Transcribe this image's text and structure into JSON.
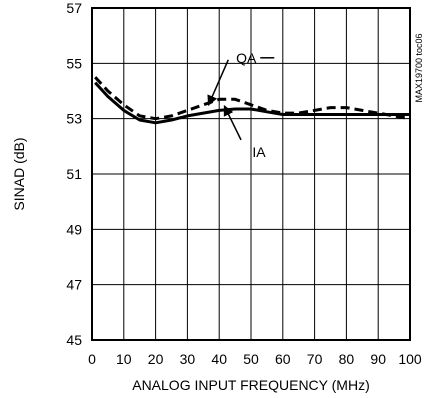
{
  "figure_id": "MAX19700 toc06",
  "chart_data": {
    "type": "line",
    "xlabel": "ANALOG INPUT FREQUENCY (MHz)",
    "ylabel": "SINAD (dB)",
    "xlim": [
      0,
      100
    ],
    "ylim": [
      45,
      57
    ],
    "xticks": [
      0,
      10,
      20,
      30,
      40,
      50,
      60,
      70,
      80,
      90,
      100
    ],
    "yticks": [
      45,
      47,
      49,
      51,
      53,
      55,
      57
    ],
    "grid": true,
    "series": [
      {
        "name": "QA",
        "style": "dashed",
        "x": [
          1,
          5,
          10,
          15,
          20,
          25,
          30,
          35,
          40,
          45,
          50,
          55,
          60,
          65,
          70,
          75,
          80,
          85,
          90,
          95,
          100
        ],
        "y": [
          54.5,
          54.0,
          53.5,
          53.1,
          53.0,
          53.1,
          53.3,
          53.5,
          53.7,
          53.7,
          53.5,
          53.3,
          53.2,
          53.2,
          53.3,
          53.4,
          53.4,
          53.3,
          53.2,
          53.1,
          53.0
        ]
      },
      {
        "name": "IA",
        "style": "solid",
        "x": [
          1,
          5,
          10,
          15,
          20,
          25,
          30,
          35,
          40,
          45,
          50,
          55,
          60,
          65,
          70,
          75,
          80,
          85,
          90,
          95,
          100
        ],
        "y": [
          54.3,
          53.8,
          53.3,
          52.95,
          52.85,
          52.95,
          53.1,
          53.2,
          53.3,
          53.35,
          53.35,
          53.25,
          53.15,
          53.15,
          53.15,
          53.15,
          53.15,
          53.15,
          53.15,
          53.15,
          53.15
        ]
      }
    ],
    "annotations": [
      {
        "text": "QA",
        "series": "QA",
        "point_x": 36,
        "point_y": 53.6,
        "label_x": 46,
        "label_y": 55.2
      },
      {
        "text": "IA",
        "series": "IA",
        "point_x": 41,
        "point_y": 53.35,
        "label_x": 50,
        "label_y": 51.8
      }
    ]
  }
}
